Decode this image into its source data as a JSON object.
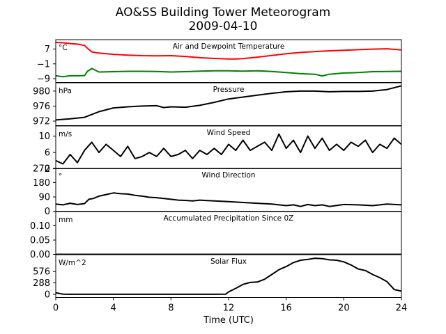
{
  "title": "AO&SS Building Tower Meteorogram",
  "subtitle": "2009-04-10",
  "xlabel": "Time (UTC)",
  "x_ticks": [
    0,
    4,
    8,
    12,
    16,
    20,
    24
  ],
  "chart_data": [
    {
      "type": "line",
      "title": "Air and Dewpoint Temperature",
      "unit": "°C",
      "ylim": [
        -11,
        12
      ],
      "yticks": [
        7,
        -1,
        -9
      ],
      "ytick_labels": [
        "7",
        "−1",
        "−9"
      ],
      "series": [
        {
          "color": "#ff0000",
          "x": [
            0,
            0.5,
            1,
            1.5,
            2,
            2.2,
            2.5,
            3,
            4,
            5,
            6,
            7,
            8,
            9,
            10,
            11,
            12,
            12.5,
            13,
            14,
            15,
            16,
            17,
            18,
            19,
            20,
            21,
            22,
            23,
            24
          ],
          "y": [
            10.5,
            10.3,
            9.9,
            9.6,
            8.9,
            7.4,
            5.4,
            4.8,
            4.1,
            3.7,
            3.4,
            3.3,
            3.4,
            3.0,
            2.3,
            1.9,
            1.6,
            1.6,
            1.8,
            2.6,
            3.5,
            4.4,
            5.1,
            5.6,
            6.0,
            6.3,
            6.6,
            6.9,
            7.1,
            6.5
          ]
        },
        {
          "color": "#008000",
          "x": [
            0,
            0.5,
            1,
            1.5,
            2,
            2.2,
            2.5,
            2.8,
            3,
            4,
            5,
            6,
            7,
            8,
            9,
            10,
            11,
            12,
            13,
            14,
            15,
            16,
            17,
            18,
            18.5,
            19,
            20,
            21,
            22,
            23,
            24
          ],
          "y": [
            -7.4,
            -7.9,
            -7.4,
            -7.4,
            -7.3,
            -5.0,
            -3.5,
            -4.6,
            -5.4,
            -5.2,
            -5.0,
            -5.0,
            -5.1,
            -5.4,
            -5.2,
            -4.9,
            -4.7,
            -4.7,
            -4.9,
            -4.7,
            -5.1,
            -5.7,
            -6.3,
            -6.6,
            -7.5,
            -6.6,
            -5.9,
            -5.7,
            -5.2,
            -5.1,
            -5.0
          ]
        }
      ]
    },
    {
      "type": "line",
      "title": "Pressure",
      "unit": "hPa",
      "ylim": [
        970.8,
        982.2
      ],
      "yticks": [
        980,
        976,
        972
      ],
      "ytick_labels": [
        "980",
        "976",
        "972"
      ],
      "series": [
        {
          "color": "#000000",
          "x": [
            0,
            1,
            2,
            3,
            4,
            5,
            6,
            7,
            7.5,
            8,
            9,
            10,
            11,
            12,
            13,
            14,
            15,
            16,
            17,
            18,
            19,
            20,
            21,
            22,
            23,
            24
          ],
          "y": [
            972.3,
            972.6,
            973.0,
            974.5,
            975.5,
            975.8,
            976.0,
            976.1,
            975.6,
            975.8,
            975.7,
            976.2,
            977.0,
            977.9,
            978.4,
            978.9,
            979.4,
            979.8,
            980.0,
            980.0,
            979.8,
            979.9,
            979.9,
            980.0,
            980.4,
            981.4
          ]
        }
      ]
    },
    {
      "type": "line",
      "title": "Wind Speed",
      "unit": "m/s",
      "ylim": [
        2,
        12.5
      ],
      "yticks": [
        10,
        6,
        2
      ],
      "ytick_labels": [
        "10",
        "6",
        "2"
      ],
      "series": [
        {
          "color": "#000000",
          "x": [
            0,
            0.5,
            1,
            1.5,
            2,
            2.5,
            3,
            3.5,
            4,
            4.5,
            5,
            5.5,
            6,
            6.5,
            7,
            7.5,
            8,
            8.5,
            9,
            9.5,
            10,
            10.5,
            11,
            11.5,
            12,
            12.5,
            13,
            13.5,
            14,
            14.5,
            15,
            15.5,
            16,
            16.5,
            17,
            17.5,
            18,
            18.5,
            19,
            19.5,
            20,
            20.5,
            21,
            21.5,
            22,
            22.5,
            23,
            23.5,
            24
          ],
          "y": [
            4.0,
            3.2,
            5.5,
            3.5,
            6.5,
            8.5,
            6.0,
            8.0,
            6.5,
            5.0,
            7.5,
            4.5,
            5.0,
            6.0,
            5.0,
            7.0,
            5.0,
            5.5,
            6.5,
            4.5,
            6.5,
            5.5,
            7.0,
            5.5,
            8.0,
            6.5,
            9.0,
            6.5,
            7.5,
            8.5,
            6.5,
            10.5,
            7.0,
            9.0,
            6.0,
            10.0,
            7.0,
            9.5,
            6.5,
            8.0,
            6.5,
            8.5,
            7.5,
            9.0,
            6.0,
            8.0,
            7.0,
            9.5,
            8.0
          ]
        }
      ]
    },
    {
      "type": "line",
      "title": "Wind Direction",
      "unit": "°",
      "ylim": [
        0,
        270
      ],
      "yticks": [
        270,
        180,
        90,
        0
      ],
      "ytick_labels": [
        "270",
        "180",
        "90",
        "0"
      ],
      "series": [
        {
          "color": "#000000",
          "x": [
            0,
            0.5,
            1,
            1.5,
            2,
            2.3,
            2.6,
            3,
            3.5,
            4,
            4.5,
            5,
            5.5,
            6,
            6.5,
            7,
            7.5,
            8,
            8.5,
            9,
            9.5,
            10,
            11,
            12,
            13,
            14,
            15,
            16,
            16.5,
            17,
            17.5,
            18,
            18.5,
            19,
            20,
            21,
            22,
            23,
            24
          ],
          "y": [
            45,
            40,
            50,
            42,
            48,
            75,
            80,
            95,
            105,
            115,
            110,
            108,
            100,
            95,
            88,
            85,
            80,
            75,
            70,
            68,
            65,
            70,
            65,
            60,
            55,
            50,
            45,
            35,
            40,
            30,
            42,
            35,
            40,
            30,
            42,
            40,
            35,
            45,
            40
          ]
        }
      ]
    },
    {
      "type": "line",
      "title": "Accumulated Precipitation Since 0Z",
      "unit": "mm",
      "ylim": [
        0,
        0.15
      ],
      "yticks": [
        0.1,
        0.05,
        0.0
      ],
      "ytick_labels": [
        "0.10",
        "0.05",
        "0.00"
      ],
      "series": [
        {
          "color": "#000000",
          "x": [
            0,
            24
          ],
          "y": [
            0,
            0
          ]
        }
      ]
    },
    {
      "type": "line",
      "title": "Solar Flux",
      "unit": "W/m^2",
      "ylim": [
        -80,
        1000
      ],
      "yticks": [
        576,
        288,
        0
      ],
      "ytick_labels": [
        "576",
        "288",
        "0"
      ],
      "series": [
        {
          "color": "#000000",
          "x": [
            0,
            0.5,
            1,
            2,
            4,
            6,
            8,
            10,
            11,
            11.8,
            12,
            12.5,
            13,
            13.5,
            14,
            14.5,
            15,
            15.5,
            16,
            16.5,
            17,
            17.5,
            18,
            18.5,
            19,
            19.5,
            20,
            20.5,
            21,
            21.5,
            22,
            22.5,
            23,
            23.5,
            24
          ],
          "y": [
            40,
            5,
            0,
            0,
            0,
            0,
            0,
            0,
            0,
            5,
            60,
            150,
            250,
            300,
            310,
            380,
            500,
            620,
            700,
            800,
            860,
            880,
            910,
            900,
            870,
            860,
            820,
            740,
            640,
            600,
            500,
            420,
            320,
            120,
            80
          ]
        }
      ]
    }
  ]
}
